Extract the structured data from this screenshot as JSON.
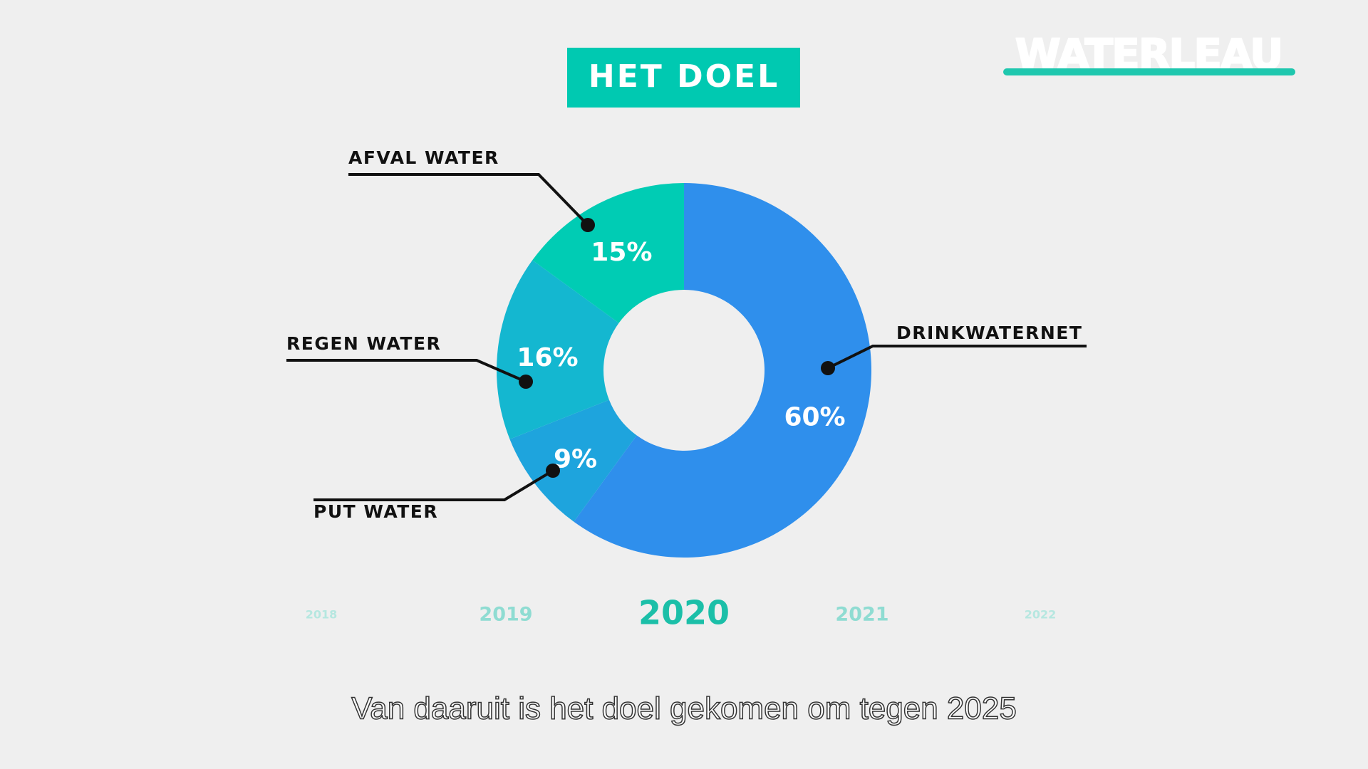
{
  "chart_data": {
    "type": "pie",
    "title": "HET DOEL",
    "categories": [
      "DRINKWATERNET",
      "PUT WATER",
      "REGEN WATER",
      "AFVAL WATER"
    ],
    "values": [
      60,
      9,
      16,
      15
    ],
    "value_labels": [
      "60%",
      "9%",
      "16%",
      "15%"
    ],
    "colors": [
      "#2f8fec",
      "#1ea4dd",
      "#14b7d0",
      "#00ccb4"
    ]
  },
  "logo": "WATERLEAU",
  "timeline": [
    "2018",
    "2019",
    "2020",
    "2021",
    "2022"
  ],
  "caption": "Van daaruit is het doel gekomen om tegen 2025"
}
